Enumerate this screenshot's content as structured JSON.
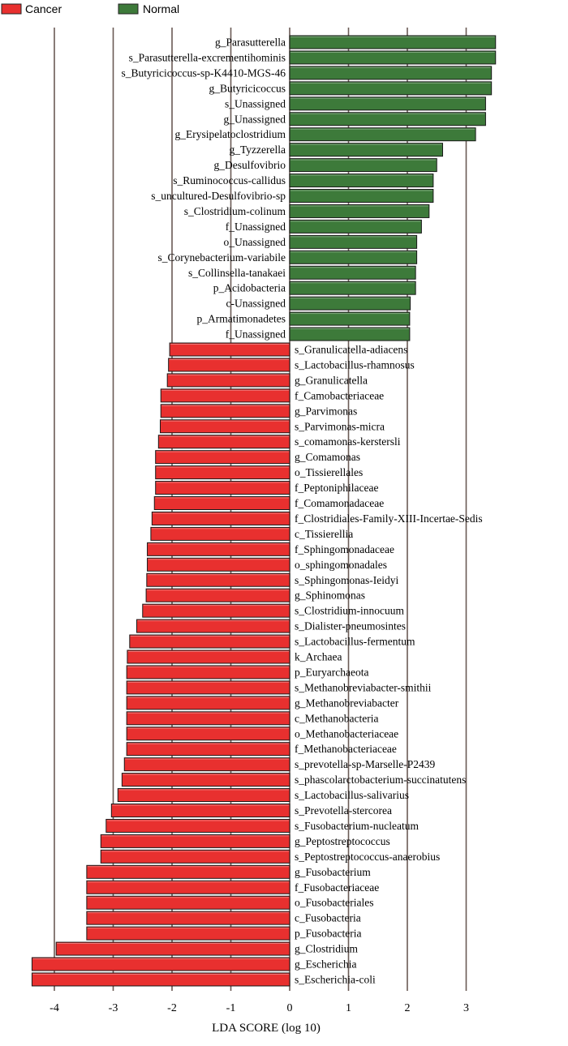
{
  "chart_data": {
    "type": "bar",
    "orientation": "horizontal",
    "xlabel": "LDA SCORE (log 10)",
    "xlim": [
      -4.4,
      3.6
    ],
    "xticks": [
      -4,
      -3,
      -2,
      -1,
      0,
      1,
      2,
      3
    ],
    "grid": "vertical",
    "legend": {
      "placement": "top-left",
      "entries": [
        {
          "name": "Cancer",
          "color": "#e8302f"
        },
        {
          "name": "Normal",
          "color": "#3d7a3a"
        }
      ]
    },
    "colors": {
      "Cancer": "#e8302f",
      "Normal": "#3d7a3a",
      "grid": "#6b5a55"
    },
    "bars": [
      {
        "label": "g_Parasutterella",
        "value": 3.5,
        "group": "Normal"
      },
      {
        "label": "s_Parasutterella-excrementihominis",
        "value": 3.5,
        "group": "Normal"
      },
      {
        "label": "s_Butyricicoccus-sp-K4410-MGS-46",
        "value": 3.43,
        "group": "Normal"
      },
      {
        "label": "g_Butyricicoccus",
        "value": 3.43,
        "group": "Normal"
      },
      {
        "label": "s_Unassigned",
        "value": 3.33,
        "group": "Normal"
      },
      {
        "label": "g_Unassigned",
        "value": 3.33,
        "group": "Normal"
      },
      {
        "label": "g_Erysipelatoclostridium",
        "value": 3.16,
        "group": "Normal"
      },
      {
        "label": "g_Tyzzerella",
        "value": 2.6,
        "group": "Normal"
      },
      {
        "label": "g_Desulfovibrio",
        "value": 2.5,
        "group": "Normal"
      },
      {
        "label": "s_Ruminococcus-callidus",
        "value": 2.44,
        "group": "Normal"
      },
      {
        "label": "s_uncultured-Desulfovibrio-sp",
        "value": 2.44,
        "group": "Normal"
      },
      {
        "label": "s_Clostridium-colinum",
        "value": 2.37,
        "group": "Normal"
      },
      {
        "label": "f_Unassigned",
        "value": 2.24,
        "group": "Normal"
      },
      {
        "label": "o_Unassigned",
        "value": 2.16,
        "group": "Normal"
      },
      {
        "label": "s_Corynebacterium-variabile",
        "value": 2.16,
        "group": "Normal"
      },
      {
        "label": "s_Collinsella-tanakaei",
        "value": 2.14,
        "group": "Normal"
      },
      {
        "label": "p_Acidobacteria",
        "value": 2.14,
        "group": "Normal"
      },
      {
        "label": "c-Unassigned",
        "value": 2.05,
        "group": "Normal"
      },
      {
        "label": "p_Armatimonadetes",
        "value": 2.04,
        "group": "Normal"
      },
      {
        "label": "f_Unassigned",
        "value": 2.04,
        "group": "Normal"
      },
      {
        "label": "s_Granulicatella-adiacens",
        "value": -2.04,
        "group": "Cancer"
      },
      {
        "label": "s_Lactobacillus-rhamnosus",
        "value": -2.06,
        "group": "Cancer"
      },
      {
        "label": "g_Granulicatella",
        "value": -2.08,
        "group": "Cancer"
      },
      {
        "label": "f_Camobacteriaceae",
        "value": -2.19,
        "group": "Cancer"
      },
      {
        "label": "g_Parvimonas",
        "value": -2.19,
        "group": "Cancer"
      },
      {
        "label": "s_Parvimonas-micra",
        "value": -2.2,
        "group": "Cancer"
      },
      {
        "label": "s_comamonas-kerstersli",
        "value": -2.23,
        "group": "Cancer"
      },
      {
        "label": "g_Comamonas",
        "value": -2.28,
        "group": "Cancer"
      },
      {
        "label": "o_Tissierellales",
        "value": -2.28,
        "group": "Cancer"
      },
      {
        "label": "f_Peptoniphilaceae",
        "value": -2.28,
        "group": "Cancer"
      },
      {
        "label": "f_Comamonadaceae",
        "value": -2.3,
        "group": "Cancer"
      },
      {
        "label": "f_Clostridiales-Family-XIII-Incertae-Sedis",
        "value": -2.34,
        "group": "Cancer"
      },
      {
        "label": "c_Tissierellia",
        "value": -2.36,
        "group": "Cancer"
      },
      {
        "label": "f_Sphingomonadaceae",
        "value": -2.42,
        "group": "Cancer"
      },
      {
        "label": "o_sphingomonadales",
        "value": -2.42,
        "group": "Cancer"
      },
      {
        "label": "s_Sphingomonas-Ieidyi",
        "value": -2.43,
        "group": "Cancer"
      },
      {
        "label": "g_Sphinomonas",
        "value": -2.44,
        "group": "Cancer"
      },
      {
        "label": "s_Clostridium-innocuum",
        "value": -2.5,
        "group": "Cancer"
      },
      {
        "label": "s_Dialister-pneumosintes",
        "value": -2.6,
        "group": "Cancer"
      },
      {
        "label": "s_Lactobacillus-fermentum",
        "value": -2.72,
        "group": "Cancer"
      },
      {
        "label": "k_Archaea",
        "value": -2.76,
        "group": "Cancer"
      },
      {
        "label": "p_Euryarchaeota",
        "value": -2.77,
        "group": "Cancer"
      },
      {
        "label": "s_Methanobreviabacter-smithii",
        "value": -2.77,
        "group": "Cancer"
      },
      {
        "label": "g_Methanobreviabacter",
        "value": -2.77,
        "group": "Cancer"
      },
      {
        "label": "c_Methanobacteria",
        "value": -2.77,
        "group": "Cancer"
      },
      {
        "label": "o_Methanobacteriaceae",
        "value": -2.77,
        "group": "Cancer"
      },
      {
        "label": "f_Methanobacteriaceae",
        "value": -2.77,
        "group": "Cancer"
      },
      {
        "label": "s_prevotella-sp-Marselle-P2439",
        "value": -2.81,
        "group": "Cancer"
      },
      {
        "label": "s_phascolarctobacterium-succinatutens",
        "value": -2.85,
        "group": "Cancer"
      },
      {
        "label": "s_Lactobacillus-salivarius",
        "value": -2.92,
        "group": "Cancer"
      },
      {
        "label": "s_Prevotella-stercorea",
        "value": -3.03,
        "group": "Cancer"
      },
      {
        "label": "s_Fusobacterium-nucleatum",
        "value": -3.12,
        "group": "Cancer"
      },
      {
        "label": "g_Peptostreptococcus",
        "value": -3.21,
        "group": "Cancer"
      },
      {
        "label": "s_Peptostreptococcus-anaerobius",
        "value": -3.21,
        "group": "Cancer"
      },
      {
        "label": "g_Fusobacterium",
        "value": -3.45,
        "group": "Cancer"
      },
      {
        "label": "f_Fusobacteriaceae",
        "value": -3.45,
        "group": "Cancer"
      },
      {
        "label": "o_Fusobacteriales",
        "value": -3.45,
        "group": "Cancer"
      },
      {
        "label": "c_Fusobacteria",
        "value": -3.45,
        "group": "Cancer"
      },
      {
        "label": "p_Fusobacteria",
        "value": -3.45,
        "group": "Cancer"
      },
      {
        "label": "g_Clostridium",
        "value": -3.97,
        "group": "Cancer"
      },
      {
        "label": "g_Escherichia",
        "value": -4.38,
        "group": "Cancer"
      },
      {
        "label": "s_Escherichia-coli",
        "value": -4.38,
        "group": "Cancer"
      }
    ]
  }
}
